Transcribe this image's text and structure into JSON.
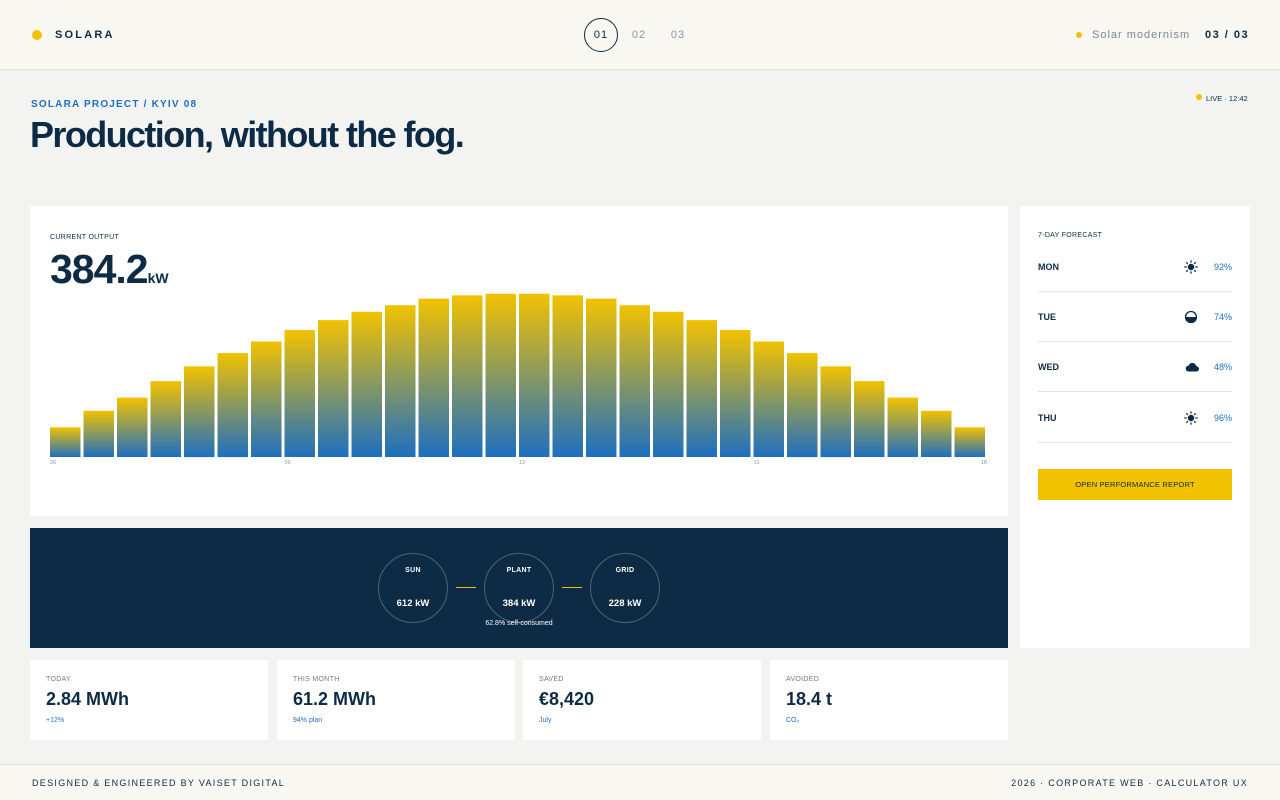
{
  "header": {
    "brand": "SOLARA",
    "steps": [
      "01",
      "02",
      "03"
    ],
    "active_step": "01",
    "tagline": "Solar modernism",
    "page": "03 / 03"
  },
  "hero": {
    "eyebrow": "SOLARA PROJECT / KYIV 08",
    "title": "Production, without the fog.",
    "live": "LIVE · 12:42"
  },
  "output": {
    "label": "CURRENT OUTPUT",
    "value": "384.2",
    "unit": "kW"
  },
  "flow": {
    "nodes": [
      {
        "name": "SUN",
        "value": "612 kW"
      },
      {
        "name": "PLANT",
        "value": "384 kW"
      },
      {
        "name": "GRID",
        "value": "228 kW"
      }
    ],
    "note": "62.8% self-consumed"
  },
  "stats": [
    {
      "label": "TODAY",
      "value": "2.84 MWh",
      "sub": "+12%"
    },
    {
      "label": "THIS MONTH",
      "value": "61.2 MWh",
      "sub": "94% plan"
    },
    {
      "label": "SAVED",
      "value": "€8,420",
      "sub": "July"
    },
    {
      "label": "AVOIDED",
      "value": "18.4 t",
      "sub": "CO₂"
    }
  ],
  "forecast": {
    "title": "7-DAY FORECAST",
    "days": [
      {
        "day": "MON",
        "icon": "sun-icon",
        "pct": "92%"
      },
      {
        "day": "TUE",
        "icon": "partly-cloudy-icon",
        "pct": "74%"
      },
      {
        "day": "WED",
        "icon": "cloud-icon",
        "pct": "48%"
      },
      {
        "day": "THU",
        "icon": "sun-icon",
        "pct": "96%"
      }
    ],
    "button": "OPEN PERFORMANCE REPORT"
  },
  "footer": {
    "left": "DESIGNED & ENGINEERED BY VAISET DIGITAL",
    "right": "2026 · CORPORATE WEB · CALCULATOR UX"
  },
  "colors": {
    "navy": "#0d2b45",
    "accent_yellow": "#f2c200",
    "accent_blue": "#1e6fc0"
  },
  "chart_data": {
    "type": "bar",
    "x_tick_labels": [
      "06",
      "09",
      "12",
      "15",
      "18"
    ],
    "values": [
      0.18,
      0.28,
      0.36,
      0.46,
      0.55,
      0.63,
      0.7,
      0.77,
      0.83,
      0.88,
      0.92,
      0.96,
      0.98,
      0.99,
      0.99,
      0.98,
      0.96,
      0.92,
      0.88,
      0.83,
      0.77,
      0.7,
      0.63,
      0.55,
      0.46,
      0.36,
      0.28,
      0.18
    ],
    "ylim": [
      0,
      1
    ],
    "gradient": [
      "#f2c200",
      "#1e6fc0"
    ],
    "grid": false,
    "legend": "none"
  }
}
